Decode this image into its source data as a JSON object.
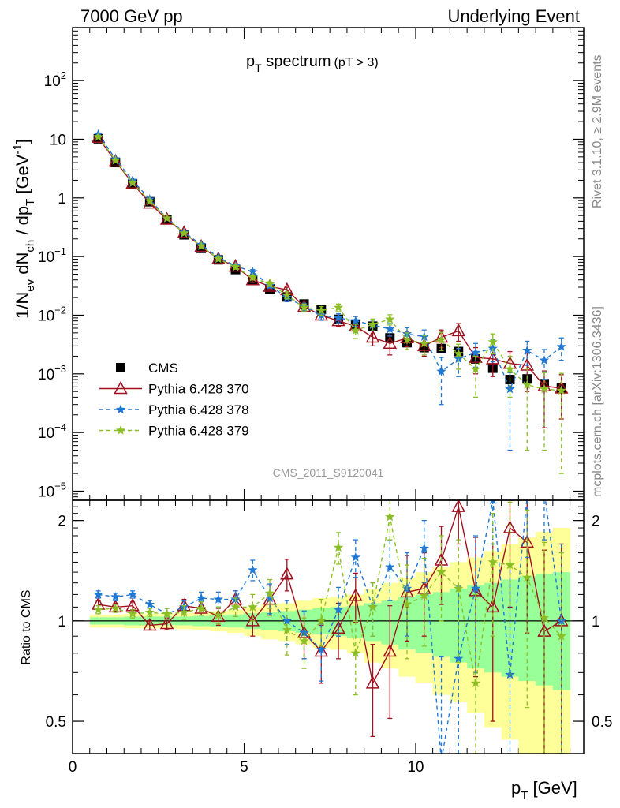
{
  "header": {
    "left": "7000 GeV pp",
    "right": "Underlying Event"
  },
  "side_labels": {
    "rivet": "Rivet 3.1.10, ≥ 2.9M events",
    "mcplots": "mcplots.cern.ch [arXiv:1306.3436]"
  },
  "analysis_tag": "CMS_2011_S9120041",
  "chart_data": [
    {
      "type": "scatter",
      "title": "p",
      "title_sub": "T",
      "title_main": " spectrum",
      "title_cut": "(pT >  3)",
      "ylabel": "1/N",
      "ylabel_parts": [
        "1/N",
        "ev",
        " dN",
        "ch",
        " / dp",
        "T",
        " [GeV",
        "-1",
        "]"
      ],
      "xlim": [
        0,
        14.9
      ],
      "ylim": [
        7e-06,
        800
      ],
      "yscale": "log",
      "yticks": [
        {
          "value": 1e-05,
          "base": "10",
          "exp": "−5"
        },
        {
          "value": 0.0001,
          "base": "10",
          "exp": "−4"
        },
        {
          "value": 0.001,
          "base": "10",
          "exp": "−3"
        },
        {
          "value": 0.01,
          "base": "10",
          "exp": "−2"
        },
        {
          "value": 0.1,
          "base": "10",
          "exp": "−1"
        },
        {
          "value": 1,
          "base": "1",
          "exp": ""
        },
        {
          "value": 10,
          "base": "10",
          "exp": ""
        },
        {
          "value": 100,
          "base": "10",
          "exp": "2"
        }
      ],
      "legend_placement": "lower-left",
      "x": [
        0.75,
        1.25,
        1.75,
        2.25,
        2.75,
        3.25,
        3.75,
        4.25,
        4.75,
        5.25,
        5.75,
        6.25,
        6.75,
        7.25,
        7.75,
        8.25,
        8.75,
        9.25,
        9.75,
        10.25,
        10.75,
        11.25,
        11.75,
        12.25,
        12.75,
        13.25,
        13.75,
        14.25
      ],
      "series": [
        {
          "name": "CMS",
          "color": "#000000",
          "marker": "square",
          "values": [
            10.2,
            4.0,
            1.72,
            0.86,
            0.43,
            0.235,
            0.138,
            0.088,
            0.06,
            0.04,
            0.028,
            0.0205,
            0.0155,
            0.0125,
            0.0085,
            0.0068,
            0.0065,
            0.0041,
            0.0034,
            0.0028,
            0.0027,
            0.0024,
            0.0018,
            0.00125,
            0.0008,
            0.00082,
            0.00068,
            0.00057
          ]
        },
        {
          "name": "Pythia 6.428 370",
          "color": "#a0101e",
          "marker": "open-triangle",
          "dash": "",
          "values": [
            10.7,
            4.2,
            1.78,
            0.81,
            0.43,
            0.255,
            0.148,
            0.091,
            0.068,
            0.04,
            0.031,
            0.027,
            0.014,
            0.01,
            0.008,
            0.0065,
            0.0042,
            0.0033,
            0.0041,
            0.003,
            0.0042,
            0.0054,
            0.0019,
            0.0018,
            0.0015,
            0.0014,
            0.00062,
            0.00057
          ],
          "errors": [
            0.3,
            0.12,
            0.05,
            0.03,
            0.02,
            0.012,
            0.008,
            0.006,
            0.005,
            0.004,
            0.003,
            0.003,
            0.002,
            0.0018,
            0.0015,
            0.0014,
            0.0012,
            0.0012,
            0.0012,
            0.001,
            0.0014,
            0.0018,
            0.0009,
            0.0009,
            0.0009,
            0.0009,
            0.0005,
            0.0004
          ]
        },
        {
          "name": "Pythia 6.428 378",
          "color": "#1f78d4",
          "marker": "star",
          "dash": "5,4",
          "values": [
            12.2,
            4.6,
            1.98,
            0.95,
            0.45,
            0.258,
            0.16,
            0.097,
            0.069,
            0.055,
            0.032,
            0.02,
            0.014,
            0.01,
            0.009,
            0.008,
            0.0068,
            0.0058,
            0.0048,
            0.0043,
            0.0011,
            0.0018,
            0.0023,
            0.0027,
            0.00055,
            0.0025,
            0.0017,
            0.0029
          ],
          "errors": [
            0.3,
            0.12,
            0.05,
            0.03,
            0.02,
            0.012,
            0.008,
            0.006,
            0.005,
            0.005,
            0.003,
            0.003,
            0.002,
            0.0018,
            0.0016,
            0.0015,
            0.0014,
            0.0014,
            0.0013,
            0.0013,
            0.0008,
            0.0009,
            0.001,
            0.0011,
            0.0005,
            0.0011,
            0.0009,
            0.0012
          ]
        },
        {
          "name": "Pythia 6.428 379",
          "color": "#8cbf26",
          "marker": "star",
          "dash": "5,4",
          "values": [
            11.0,
            4.35,
            1.8,
            0.88,
            0.45,
            0.25,
            0.151,
            0.091,
            0.066,
            0.044,
            0.034,
            0.022,
            0.0135,
            0.012,
            0.0135,
            0.0055,
            0.007,
            0.0085,
            0.0038,
            0.0033,
            0.0038,
            0.0022,
            0.0012,
            0.0035,
            0.0012,
            0.00065,
            0.00055,
            0.00052
          ],
          "errors": [
            0.3,
            0.12,
            0.05,
            0.03,
            0.02,
            0.012,
            0.008,
            0.006,
            0.005,
            0.004,
            0.003,
            0.003,
            0.002,
            0.002,
            0.002,
            0.0015,
            0.0016,
            0.0017,
            0.0012,
            0.0012,
            0.0013,
            0.001,
            0.0008,
            0.0013,
            0.0008,
            0.0006,
            0.0005,
            0.0005
          ]
        }
      ]
    },
    {
      "type": "scatter",
      "ylabel": "Ratio to CMS",
      "xlabel": "p",
      "xlabel_sub": "T",
      "xlabel_unit": " [GeV]",
      "xlim": [
        0,
        14.9
      ],
      "xticks": [
        0,
        5,
        10
      ],
      "ylim": [
        0.4,
        2.3
      ],
      "yscale": "log",
      "yticks": [
        0.5,
        1,
        2
      ],
      "band_yellow": {
        "color": "#ffff99",
        "upper": [
          1.045,
          1.045,
          1.05,
          1.05,
          1.05,
          1.055,
          1.06,
          1.07,
          1.08,
          1.1,
          1.12,
          1.13,
          1.15,
          1.17,
          1.18,
          1.2,
          1.25,
          1.3,
          1.35,
          1.4,
          1.45,
          1.5,
          1.55,
          1.62,
          1.7,
          1.78,
          1.85,
          1.9
        ],
        "lower": [
          0.955,
          0.955,
          0.95,
          0.95,
          0.95,
          0.945,
          0.94,
          0.93,
          0.92,
          0.9,
          0.88,
          0.87,
          0.85,
          0.83,
          0.82,
          0.8,
          0.75,
          0.72,
          0.68,
          0.65,
          0.6,
          0.57,
          0.53,
          0.48,
          0.44,
          0.4,
          0.38,
          0.35
        ]
      },
      "band_green": {
        "color": "#99ff99",
        "upper": [
          1.025,
          1.025,
          1.03,
          1.03,
          1.03,
          1.03,
          1.035,
          1.04,
          1.045,
          1.055,
          1.06,
          1.07,
          1.08,
          1.09,
          1.1,
          1.11,
          1.13,
          1.15,
          1.18,
          1.2,
          1.22,
          1.25,
          1.28,
          1.3,
          1.33,
          1.36,
          1.38,
          1.4
        ],
        "lower": [
          0.975,
          0.975,
          0.97,
          0.97,
          0.97,
          0.97,
          0.965,
          0.96,
          0.955,
          0.945,
          0.94,
          0.93,
          0.92,
          0.91,
          0.9,
          0.89,
          0.87,
          0.85,
          0.82,
          0.8,
          0.78,
          0.75,
          0.72,
          0.7,
          0.68,
          0.66,
          0.64,
          0.62
        ]
      },
      "x": [
        0.75,
        1.25,
        1.75,
        2.25,
        2.75,
        3.25,
        3.75,
        4.25,
        4.75,
        5.25,
        5.75,
        6.25,
        6.75,
        7.25,
        7.75,
        8.25,
        8.75,
        9.25,
        9.75,
        10.25,
        10.75,
        11.25,
        11.75,
        12.25,
        12.75,
        13.25,
        13.75,
        14.25
      ],
      "series": [
        {
          "name": "Pythia 6.428 370",
          "color": "#a0101e",
          "marker": "open-triangle",
          "dash": "",
          "values": [
            1.12,
            1.1,
            1.11,
            0.97,
            0.98,
            1.11,
            1.09,
            1.03,
            1.16,
            1.0,
            1.16,
            1.38,
            0.92,
            0.81,
            0.95,
            1.19,
            0.65,
            0.81,
            1.22,
            1.25,
            1.52,
            2.2,
            1.23,
            1.1,
            1.9,
            1.72,
            0.93,
            1.0
          ],
          "errors": [
            0.03,
            0.03,
            0.03,
            0.03,
            0.04,
            0.05,
            0.05,
            0.06,
            0.07,
            0.1,
            0.12,
            0.15,
            0.15,
            0.16,
            0.18,
            0.2,
            0.2,
            0.3,
            0.35,
            0.35,
            0.4,
            0.5,
            0.55,
            0.6,
            0.8,
            0.8,
            0.7,
            0.7
          ]
        },
        {
          "name": "Pythia 6.428 378",
          "color": "#1f78d4",
          "marker": "star",
          "dash": "5,4",
          "values": [
            1.2,
            1.18,
            1.2,
            1.12,
            1.05,
            1.1,
            1.17,
            1.16,
            1.16,
            1.42,
            1.17,
            1.0,
            0.92,
            0.82,
            1.08,
            1.55,
            1.1,
            1.45,
            1.25,
            1.65,
            0.38,
            0.77,
            1.25,
            2.3,
            0.69,
            2.35,
            2.45,
            1.0
          ],
          "errors": [
            0.03,
            0.03,
            0.03,
            0.03,
            0.04,
            0.05,
            0.05,
            0.06,
            0.07,
            0.1,
            0.12,
            0.15,
            0.15,
            0.16,
            0.18,
            0.2,
            0.2,
            0.3,
            0.35,
            0.35,
            0.4,
            0.5,
            0.55,
            0.6,
            0.8,
            0.8,
            0.7,
            0.7
          ]
        },
        {
          "name": "Pythia 6.428 379",
          "color": "#8cbf26",
          "marker": "star",
          "dash": "5,4",
          "values": [
            1.08,
            1.09,
            1.05,
            1.06,
            1.05,
            1.06,
            1.09,
            1.04,
            1.1,
            1.1,
            1.21,
            0.94,
            0.87,
            1.0,
            1.66,
            0.8,
            1.1,
            2.05,
            1.12,
            1.19,
            1.4,
            1.25,
            0.65,
            1.5,
            1.47,
            1.35,
            1.02,
            0.9
          ],
          "errors": [
            0.03,
            0.03,
            0.03,
            0.03,
            0.04,
            0.05,
            0.05,
            0.06,
            0.07,
            0.1,
            0.12,
            0.15,
            0.15,
            0.16,
            0.18,
            0.2,
            0.2,
            0.3,
            0.35,
            0.35,
            0.4,
            0.5,
            0.55,
            0.6,
            0.8,
            0.8,
            0.7,
            0.7
          ]
        }
      ]
    }
  ]
}
